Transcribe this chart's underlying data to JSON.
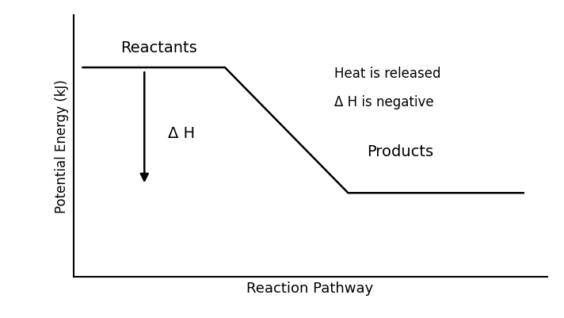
{
  "background_color": "#ffffff",
  "line_color": "#000000",
  "line_width": 1.8,
  "ylabel": "Potential Energy (kJ)",
  "xlabel": "Reaction Pathway",
  "xlabel_fontsize": 13,
  "ylabel_fontsize": 12,
  "label_reactants": "Reactants",
  "label_products": "Products",
  "label_heat": "Heat is released",
  "label_dH_neg": "Δ H is negative",
  "label_dH": "Δ H",
  "text_fontsize": 12
}
